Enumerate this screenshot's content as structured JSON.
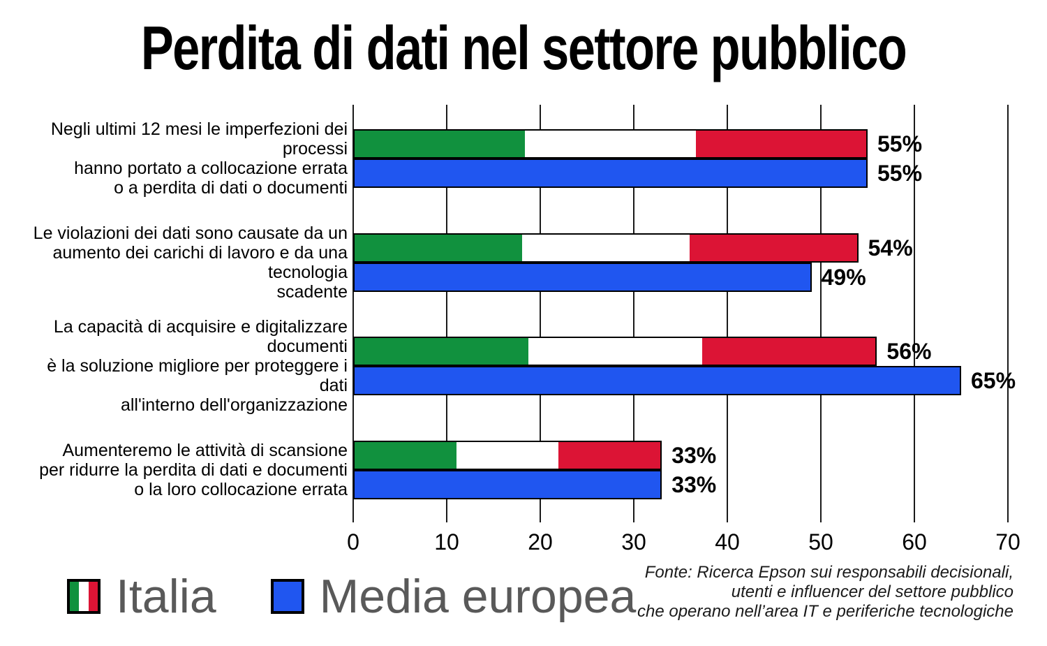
{
  "title": "Perdita di dati nel settore pubblico",
  "chart_data": {
    "type": "bar",
    "orientation": "horizontal",
    "categories": [
      "Negli ultimi 12 mesi le imperfezioni dei processi hanno portato a collocazione errata o a perdita di dati o documenti",
      "Le violazioni dei dati sono causate da un aumento dei carichi di lavoro e da una tecnologia scadente",
      "La capacità di acquisire e digitalizzare documenti è la soluzione migliore per proteggere i dati all'interno dell'organizzazione",
      "Aumenteremo le attività di scansione per ridurre la perdita di dati e documenti o la loro collocazione errata"
    ],
    "category_lines": [
      [
        "Negli ultimi 12 mesi le imperfezioni dei processi",
        "hanno portato a collocazione errata",
        "o a perdita di dati o documenti"
      ],
      [
        "Le violazioni dei dati sono causate da un",
        "aumento dei carichi di lavoro e da una tecnologia",
        "scadente"
      ],
      [
        "La capacità di acquisire e digitalizzare documenti",
        "è la soluzione migliore per proteggere i dati",
        "all'interno dell'organizzazione"
      ],
      [
        "Aumenteremo le attività di scansione",
        "per ridurre la perdita di dati e documenti",
        "o la loro collocazione errata"
      ]
    ],
    "series": [
      {
        "name": "Italia",
        "values": [
          55,
          54,
          56,
          33
        ],
        "labels": [
          "55%",
          "54%",
          "56%",
          "33%"
        ]
      },
      {
        "name": "Media europea",
        "values": [
          55,
          49,
          65,
          33
        ],
        "labels": [
          "55%",
          "49%",
          "65%",
          "33%"
        ]
      }
    ],
    "xlim": [
      0,
      70
    ],
    "x_ticks": [
      "0",
      "10",
      "20",
      "30",
      "40",
      "50",
      "60",
      "70"
    ],
    "grid": "vertical",
    "legend_position": "bottom-left"
  },
  "legend": {
    "items": [
      {
        "label": "Italia",
        "swatch": "italy-flag"
      },
      {
        "label": "Media europea",
        "swatch": "blue"
      }
    ]
  },
  "source": {
    "lines": [
      "Fonte: Ricerca Epson sui responsabili decisionali,",
      "utenti e influencer del settore pubblico",
      "che operano nell’area IT e periferiche tecnologiche"
    ]
  },
  "colors": {
    "flag_green": "#11913E",
    "flag_white": "#FFFFFF",
    "flag_red": "#DC1435",
    "europe_blue": "#2056F0",
    "bar_border": "#000000",
    "grid": "#1A1A1A",
    "legend_text": "#595959",
    "text": "#000000"
  }
}
